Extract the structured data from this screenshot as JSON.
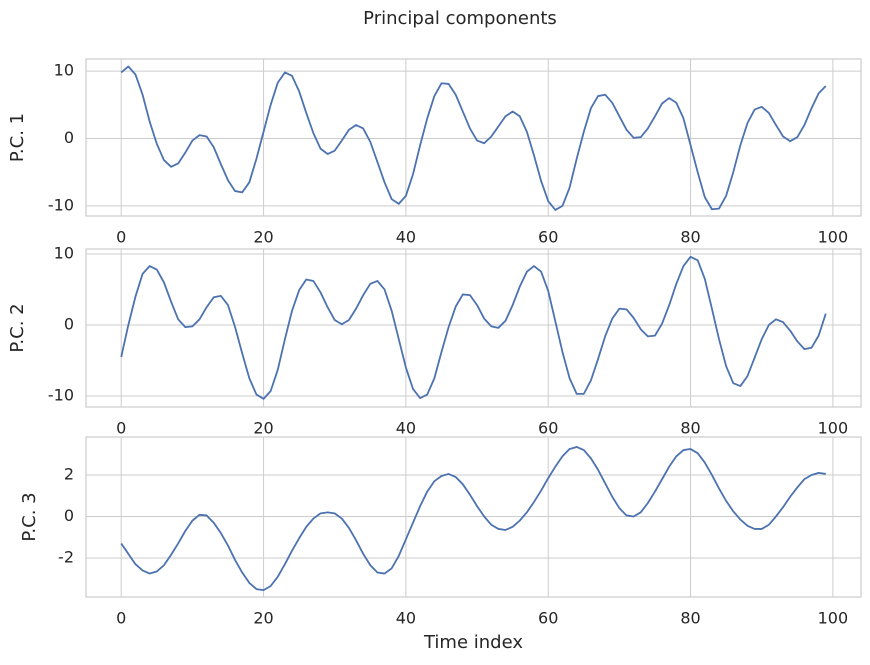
{
  "title": "Principal components",
  "chart_data": [
    {
      "type": "line",
      "ylabel": "P.C. 1",
      "x": [
        0,
        1,
        2,
        3,
        4,
        5,
        6,
        7,
        8,
        9,
        10,
        11,
        12,
        13,
        14,
        15,
        16,
        17,
        18,
        19,
        20,
        21,
        22,
        23,
        24,
        25,
        26,
        27,
        28,
        29,
        30,
        31,
        32,
        33,
        34,
        35,
        36,
        37,
        38,
        39,
        40,
        41,
        42,
        43,
        44,
        45,
        46,
        47,
        48,
        49,
        50,
        51,
        52,
        53,
        54,
        55,
        56,
        57,
        58,
        59,
        60,
        61,
        62,
        63,
        64,
        65,
        66,
        67,
        68,
        69,
        70,
        71,
        72,
        73,
        74,
        75,
        76,
        77,
        78,
        79,
        80,
        81,
        82,
        83,
        84,
        85,
        86,
        87,
        88,
        89,
        90,
        91,
        92,
        93,
        94,
        95,
        96,
        97,
        98,
        99
      ],
      "series": [
        {
          "color": "#4c72b0",
          "values": [
            9.8,
            10.7,
            9.5,
            6.5,
            2.5,
            -0.8,
            -3.2,
            -4.2,
            -3.7,
            -2.1,
            -0.3,
            0.5,
            0.3,
            -1.3,
            -3.8,
            -6.2,
            -7.8,
            -8.0,
            -6.5,
            -3.0,
            1.0,
            5.0,
            8.3,
            9.8,
            9.3,
            7.0,
            3.8,
            0.8,
            -1.5,
            -2.3,
            -1.8,
            -0.3,
            1.3,
            2.0,
            1.5,
            -0.5,
            -3.5,
            -6.5,
            -9.0,
            -9.7,
            -8.5,
            -5.3,
            -1.0,
            3.0,
            6.3,
            8.2,
            8.1,
            6.5,
            4.0,
            1.5,
            -0.3,
            -0.7,
            0.3,
            1.8,
            3.3,
            4.0,
            3.3,
            1.0,
            -2.5,
            -6.3,
            -9.3,
            -10.6,
            -10.0,
            -7.3,
            -3.0,
            1.0,
            4.5,
            6.3,
            6.5,
            5.3,
            3.3,
            1.3,
            0.1,
            0.2,
            1.5,
            3.3,
            5.2,
            6.0,
            5.3,
            3.0,
            -1.0,
            -5.0,
            -8.7,
            -10.5,
            -10.4,
            -8.5,
            -5.0,
            -1.0,
            2.3,
            4.3,
            4.7,
            3.8,
            2.0,
            0.3,
            -0.4,
            0.2,
            2.0,
            4.5,
            6.7,
            7.8
          ]
        }
      ],
      "xlim": [
        -4.95,
        103.95
      ],
      "xticks": [
        0,
        20,
        40,
        60,
        80,
        100
      ],
      "ylim": [
        -11.5,
        11.8
      ],
      "yticks": [
        -10,
        0,
        10
      ],
      "grid": true
    },
    {
      "type": "line",
      "ylabel": "P.C. 2",
      "x": [
        0,
        1,
        2,
        3,
        4,
        5,
        6,
        7,
        8,
        9,
        10,
        11,
        12,
        13,
        14,
        15,
        16,
        17,
        18,
        19,
        20,
        21,
        22,
        23,
        24,
        25,
        26,
        27,
        28,
        29,
        30,
        31,
        32,
        33,
        34,
        35,
        36,
        37,
        38,
        39,
        40,
        41,
        42,
        43,
        44,
        45,
        46,
        47,
        48,
        49,
        50,
        51,
        52,
        53,
        54,
        55,
        56,
        57,
        58,
        59,
        60,
        61,
        62,
        63,
        64,
        65,
        66,
        67,
        68,
        69,
        70,
        71,
        72,
        73,
        74,
        75,
        76,
        77,
        78,
        79,
        80,
        81,
        82,
        83,
        84,
        85,
        86,
        87,
        88,
        89,
        90,
        91,
        92,
        93,
        94,
        95,
        96,
        97,
        98,
        99
      ],
      "series": [
        {
          "color": "#4c72b0",
          "values": [
            -4.5,
            0,
            4.0,
            7.2,
            8.3,
            7.8,
            6.0,
            3.3,
            0.8,
            -0.3,
            -0.2,
            0.8,
            2.5,
            3.9,
            4.1,
            2.8,
            -0.3,
            -4.0,
            -7.5,
            -9.8,
            -10.4,
            -9.3,
            -6.3,
            -2.0,
            2.0,
            4.9,
            6.4,
            6.2,
            4.6,
            2.5,
            0.7,
            0.1,
            0.7,
            2.3,
            4.2,
            5.8,
            6.2,
            5.0,
            2.0,
            -2.0,
            -6.0,
            -9.0,
            -10.3,
            -9.8,
            -7.5,
            -3.8,
            -0.3,
            2.6,
            4.3,
            4.2,
            2.8,
            0.9,
            -0.2,
            -0.4,
            0.6,
            2.8,
            5.4,
            7.5,
            8.3,
            7.5,
            4.8,
            0.5,
            -3.8,
            -7.5,
            -9.7,
            -9.7,
            -7.8,
            -4.8,
            -1.6,
            0.9,
            2.3,
            2.2,
            1.0,
            -0.6,
            -1.6,
            -1.5,
            0.2,
            2.8,
            5.8,
            8.3,
            9.6,
            9.1,
            6.5,
            2.3,
            -2.0,
            -5.8,
            -8.2,
            -8.6,
            -7.2,
            -4.6,
            -2.0,
            0.0,
            0.8,
            0.4,
            -0.8,
            -2.3,
            -3.4,
            -3.2,
            -1.5,
            1.6
          ]
        }
      ],
      "xlim": [
        -4.95,
        103.95
      ],
      "xticks": [
        0,
        20,
        40,
        60,
        80,
        100
      ],
      "ylim": [
        -11.55,
        10.7
      ],
      "yticks": [
        -10,
        0,
        10
      ],
      "grid": true
    },
    {
      "type": "line",
      "ylabel": "P.C. 3",
      "xlabel": "Time index",
      "x": [
        0,
        1,
        2,
        3,
        4,
        5,
        6,
        7,
        8,
        9,
        10,
        11,
        12,
        13,
        14,
        15,
        16,
        17,
        18,
        19,
        20,
        21,
        22,
        23,
        24,
        25,
        26,
        27,
        28,
        29,
        30,
        31,
        32,
        33,
        34,
        35,
        36,
        37,
        38,
        39,
        40,
        41,
        42,
        43,
        44,
        45,
        46,
        47,
        48,
        49,
        50,
        51,
        52,
        53,
        54,
        55,
        56,
        57,
        58,
        59,
        60,
        61,
        62,
        63,
        64,
        65,
        66,
        67,
        68,
        69,
        70,
        71,
        72,
        73,
        74,
        75,
        76,
        77,
        78,
        79,
        80,
        81,
        82,
        83,
        84,
        85,
        86,
        87,
        88,
        89,
        90,
        91,
        92,
        93,
        94,
        95,
        96,
        97,
        98,
        99
      ],
      "series": [
        {
          "color": "#4c72b0",
          "values": [
            -1.3,
            -1.8,
            -2.3,
            -2.6,
            -2.75,
            -2.65,
            -2.35,
            -1.85,
            -1.3,
            -0.7,
            -0.2,
            0.08,
            0.05,
            -0.3,
            -0.8,
            -1.4,
            -2.1,
            -2.7,
            -3.2,
            -3.5,
            -3.55,
            -3.35,
            -2.9,
            -2.3,
            -1.65,
            -1.05,
            -0.5,
            -0.1,
            0.15,
            0.2,
            0.15,
            -0.1,
            -0.55,
            -1.15,
            -1.8,
            -2.35,
            -2.7,
            -2.75,
            -2.5,
            -1.9,
            -1.1,
            -0.3,
            0.5,
            1.2,
            1.7,
            1.95,
            2.05,
            1.9,
            1.55,
            1.05,
            0.5,
            0.0,
            -0.4,
            -0.6,
            -0.65,
            -0.5,
            -0.2,
            0.2,
            0.7,
            1.25,
            1.85,
            2.4,
            2.9,
            3.25,
            3.35,
            3.2,
            2.8,
            2.25,
            1.6,
            0.95,
            0.4,
            0.05,
            0.0,
            0.2,
            0.65,
            1.2,
            1.8,
            2.4,
            2.9,
            3.2,
            3.25,
            3.05,
            2.6,
            2.0,
            1.35,
            0.75,
            0.25,
            -0.15,
            -0.45,
            -0.6,
            -0.6,
            -0.4,
            0.0,
            0.45,
            0.95,
            1.4,
            1.8,
            2.0,
            2.1,
            2.05
          ]
        }
      ],
      "xlim": [
        -4.95,
        103.95
      ],
      "xticks": [
        0,
        20,
        40,
        60,
        80,
        100
      ],
      "ylim": [
        -3.88,
        3.83
      ],
      "yticks": [
        -2,
        0,
        2
      ],
      "grid": true
    }
  ]
}
